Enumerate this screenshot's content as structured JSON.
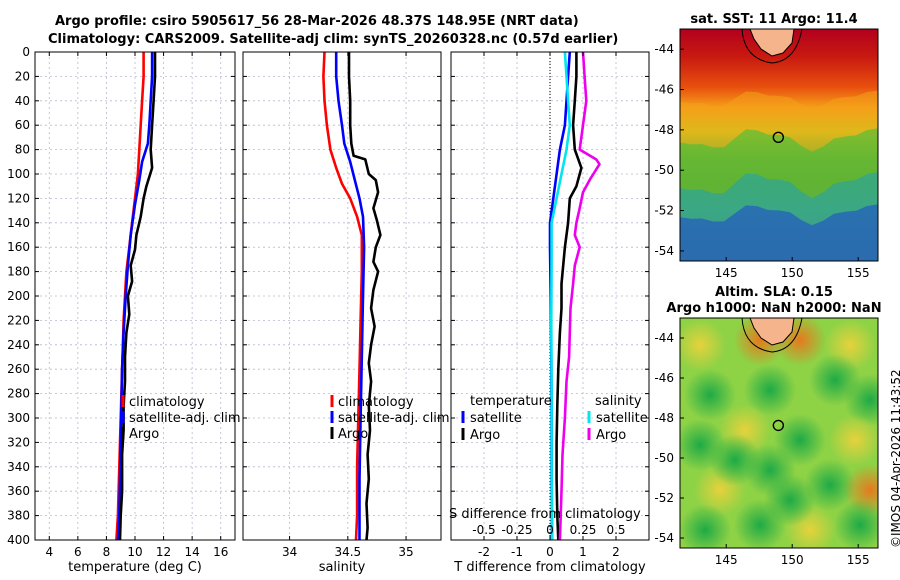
{
  "header": {
    "line1": "Argo profile: csiro 5905617_56 28-Mar-2026 48.37S 148.95E (NRT data)",
    "line2": "Climatology: CARS2009. Satellite-adj clim: synTS_20260328.nc (0.57d earlier)"
  },
  "colors": {
    "clim": "#ff0000",
    "sat": "#0000ff",
    "argo": "#000000",
    "sat_s": "#00e5ee",
    "argo_s": "#ee00ee"
  },
  "y_ticks": [
    "0",
    "20",
    "40",
    "60",
    "80",
    "100",
    "120",
    "140",
    "160",
    "180",
    "200",
    "220",
    "240",
    "260",
    "280",
    "300",
    "320",
    "340",
    "360",
    "380",
    "400"
  ],
  "chart_data": [
    {
      "type": "line",
      "id": "temperature",
      "xlabel": "temperature (deg C)",
      "xlim": [
        3,
        17
      ],
      "ylim": [
        0,
        400
      ],
      "y_reversed": true,
      "x_ticks": [
        4,
        6,
        8,
        10,
        12,
        14,
        16
      ],
      "x_tick_labels": [
        "4",
        "6",
        "8",
        "10",
        "12",
        "14",
        "16"
      ],
      "legend": [
        "climatology",
        "satellite-adj. clim",
        "Argo"
      ],
      "series": [
        {
          "name": "climatology",
          "color": "#ff0000",
          "points": [
            [
              10.6,
              0
            ],
            [
              10.6,
              20
            ],
            [
              10.5,
              40
            ],
            [
              10.4,
              60
            ],
            [
              10.3,
              80
            ],
            [
              10.2,
              100
            ],
            [
              10.0,
              120
            ],
            [
              9.8,
              140
            ],
            [
              9.6,
              160
            ],
            [
              9.4,
              180
            ],
            [
              9.3,
              200
            ],
            [
              9.2,
              220
            ],
            [
              9.15,
              240
            ],
            [
              9.1,
              260
            ],
            [
              9.05,
              280
            ],
            [
              9.0,
              300
            ],
            [
              8.95,
              320
            ],
            [
              8.9,
              340
            ],
            [
              8.85,
              360
            ],
            [
              8.8,
              380
            ],
            [
              8.7,
              400
            ]
          ]
        },
        {
          "name": "satellite-adj. clim",
          "color": "#0000ff",
          "points": [
            [
              11.2,
              0
            ],
            [
              11.2,
              20
            ],
            [
              11.1,
              40
            ],
            [
              11.0,
              60
            ],
            [
              10.9,
              75
            ],
            [
              10.5,
              90
            ],
            [
              10.3,
              105
            ],
            [
              10.0,
              125
            ],
            [
              9.7,
              150
            ],
            [
              9.5,
              175
            ],
            [
              9.35,
              200
            ],
            [
              9.2,
              230
            ],
            [
              9.1,
              260
            ],
            [
              9.05,
              290
            ],
            [
              9.0,
              320
            ],
            [
              8.95,
              350
            ],
            [
              8.9,
              380
            ],
            [
              8.8,
              400
            ]
          ]
        },
        {
          "name": "Argo",
          "color": "#000000",
          "points": [
            [
              11.4,
              0
            ],
            [
              11.4,
              20
            ],
            [
              11.3,
              40
            ],
            [
              11.2,
              60
            ],
            [
              11.1,
              80
            ],
            [
              11.2,
              95
            ],
            [
              10.8,
              110
            ],
            [
              10.6,
              120
            ],
            [
              10.4,
              135
            ],
            [
              10.1,
              150
            ],
            [
              10.0,
              162
            ],
            [
              9.7,
              175
            ],
            [
              9.8,
              188
            ],
            [
              9.5,
              200
            ],
            [
              9.6,
              215
            ],
            [
              9.4,
              230
            ],
            [
              9.3,
              250
            ],
            [
              9.3,
              270
            ],
            [
              9.2,
              290
            ],
            [
              9.2,
              310
            ],
            [
              9.1,
              330
            ],
            [
              9.1,
              360
            ],
            [
              9.0,
              380
            ],
            [
              8.95,
              400
            ]
          ]
        }
      ]
    },
    {
      "type": "line",
      "id": "salinity",
      "xlabel": "salinity",
      "xlim": [
        33.6,
        35.3
      ],
      "ylim": [
        0,
        400
      ],
      "y_reversed": true,
      "x_ticks": [
        34,
        34.5,
        35
      ],
      "x_tick_labels": [
        "34",
        "34.5",
        "35"
      ],
      "legend": [
        "climatology",
        "satellite-adj. clim",
        "Argo"
      ],
      "series": [
        {
          "name": "climatology",
          "color": "#ff0000",
          "points": [
            [
              34.3,
              0
            ],
            [
              34.29,
              20
            ],
            [
              34.3,
              40
            ],
            [
              34.32,
              60
            ],
            [
              34.35,
              80
            ],
            [
              34.4,
              95
            ],
            [
              34.45,
              108
            ],
            [
              34.52,
              120
            ],
            [
              34.58,
              135
            ],
            [
              34.62,
              150
            ],
            [
              34.62,
              180
            ],
            [
              34.61,
              220
            ],
            [
              34.6,
              260
            ],
            [
              34.59,
              300
            ],
            [
              34.58,
              340
            ],
            [
              34.58,
              380
            ],
            [
              34.57,
              400
            ]
          ]
        },
        {
          "name": "satellite-adj. clim",
          "color": "#0000ff",
          "points": [
            [
              34.4,
              0
            ],
            [
              34.4,
              20
            ],
            [
              34.42,
              40
            ],
            [
              34.45,
              60
            ],
            [
              34.47,
              75
            ],
            [
              34.52,
              90
            ],
            [
              34.56,
              105
            ],
            [
              34.6,
              120
            ],
            [
              34.63,
              135
            ],
            [
              34.64,
              160
            ],
            [
              34.63,
              200
            ],
            [
              34.62,
              250
            ],
            [
              34.61,
              300
            ],
            [
              34.6,
              350
            ],
            [
              34.6,
              400
            ]
          ]
        },
        {
          "name": "Argo",
          "color": "#000000",
          "points": [
            [
              34.51,
              0
            ],
            [
              34.51,
              20
            ],
            [
              34.52,
              40
            ],
            [
              34.52,
              60
            ],
            [
              34.53,
              75
            ],
            [
              34.55,
              85
            ],
            [
              34.65,
              88
            ],
            [
              34.68,
              100
            ],
            [
              34.74,
              105
            ],
            [
              34.76,
              115
            ],
            [
              34.72,
              128
            ],
            [
              34.75,
              138
            ],
            [
              34.78,
              150
            ],
            [
              34.74,
              160
            ],
            [
              34.72,
              172
            ],
            [
              34.76,
              180
            ],
            [
              34.72,
              195
            ],
            [
              34.7,
              210
            ],
            [
              34.73,
              225
            ],
            [
              34.7,
              240
            ],
            [
              34.68,
              255
            ],
            [
              34.7,
              270
            ],
            [
              34.68,
              290
            ],
            [
              34.69,
              310
            ],
            [
              34.67,
              330
            ],
            [
              34.68,
              350
            ],
            [
              34.66,
              370
            ],
            [
              34.67,
              390
            ],
            [
              34.66,
              400
            ]
          ]
        }
      ]
    },
    {
      "type": "line",
      "id": "difference",
      "xlabel": "T difference from climatology",
      "xlabel_top": "S difference from climatology",
      "xlim": [
        -3,
        3
      ],
      "ylim": [
        0,
        400
      ],
      "y_reversed": true,
      "zero_line": true,
      "x_ticks": [
        -2,
        -1,
        0,
        1,
        2
      ],
      "x_tick_labels": [
        "-2",
        "-1",
        "0",
        "1",
        "2"
      ],
      "s_ticks": [
        "-0.5",
        "-0.25",
        "0",
        "0.25",
        "0.5"
      ],
      "s_scale": 0.25,
      "legend_left_title": "temperature",
      "legend_right_title": "salinity",
      "legend": [
        "satellite",
        "Argo",
        "satellite",
        "Argo"
      ],
      "series": [
        {
          "name": "temperature satellite",
          "color": "#0000ff",
          "points": [
            [
              0.6,
              0
            ],
            [
              0.55,
              20
            ],
            [
              0.5,
              40
            ],
            [
              0.45,
              60
            ],
            [
              0.3,
              80
            ],
            [
              0.2,
              100
            ],
            [
              0.1,
              120
            ],
            [
              0.0,
              140
            ],
            [
              0.0,
              160
            ],
            [
              0.02,
              200
            ],
            [
              0.04,
              250
            ],
            [
              0.05,
              300
            ],
            [
              0.05,
              350
            ],
            [
              0.06,
              400
            ]
          ]
        },
        {
          "name": "temperature Argo",
          "color": "#000000",
          "points": [
            [
              0.8,
              0
            ],
            [
              0.8,
              20
            ],
            [
              0.75,
              40
            ],
            [
              0.7,
              60
            ],
            [
              0.75,
              80
            ],
            [
              0.95,
              95
            ],
            [
              0.8,
              110
            ],
            [
              0.6,
              120
            ],
            [
              0.55,
              140
            ],
            [
              0.45,
              160
            ],
            [
              0.4,
              175
            ],
            [
              0.35,
              190
            ],
            [
              0.35,
              210
            ],
            [
              0.3,
              230
            ],
            [
              0.25,
              260
            ],
            [
              0.22,
              290
            ],
            [
              0.2,
              320
            ],
            [
              0.2,
              350
            ],
            [
              0.22,
              380
            ],
            [
              0.25,
              400
            ]
          ]
        },
        {
          "name": "salinity satellite",
          "color": "#00e5ee",
          "points": [
            [
              0.45,
              0
            ],
            [
              0.5,
              20
            ],
            [
              0.55,
              40
            ],
            [
              0.6,
              60
            ],
            [
              0.5,
              80
            ],
            [
              0.35,
              100
            ],
            [
              0.2,
              120
            ],
            [
              0.05,
              140
            ],
            [
              0.05,
              170
            ],
            [
              0.04,
              220
            ],
            [
              0.05,
              280
            ],
            [
              0.05,
              340
            ],
            [
              0.06,
              400
            ]
          ]
        },
        {
          "name": "salinity Argo",
          "color": "#ee00ee",
          "points": [
            [
              1.0,
              0
            ],
            [
              1.05,
              20
            ],
            [
              1.1,
              40
            ],
            [
              1.0,
              60
            ],
            [
              0.9,
              80
            ],
            [
              1.4,
              88
            ],
            [
              1.5,
              92
            ],
            [
              1.2,
              105
            ],
            [
              1.0,
              115
            ],
            [
              0.9,
              128
            ],
            [
              0.8,
              140
            ],
            [
              0.75,
              150
            ],
            [
              0.9,
              160
            ],
            [
              0.75,
              175
            ],
            [
              0.7,
              190
            ],
            [
              0.62,
              210
            ],
            [
              0.6,
              230
            ],
            [
              0.58,
              250
            ],
            [
              0.5,
              270
            ],
            [
              0.45,
              300
            ],
            [
              0.38,
              330
            ],
            [
              0.35,
              360
            ],
            [
              0.3,
              400
            ]
          ]
        }
      ]
    },
    {
      "type": "heatmap",
      "id": "sst_map",
      "title": "sat. SST: 11 Argo: 11.4",
      "x_ticks": [
        "145",
        "150",
        "155"
      ],
      "y_ticks": [
        "-44",
        "-46",
        "-48",
        "-50",
        "-52",
        "-54"
      ],
      "xlim": [
        141.5,
        156.5
      ],
      "ylim": [
        -54.5,
        -43
      ],
      "marker": {
        "lon": 148.95,
        "lat": -48.37
      }
    },
    {
      "type": "heatmap",
      "id": "sla_map",
      "title1": "Altim. SLA: 0.15",
      "title2": "Argo h1000: NaN h2000: NaN",
      "x_ticks": [
        "145",
        "150",
        "155"
      ],
      "y_ticks": [
        "-44",
        "-46",
        "-48",
        "-50",
        "-52",
        "-54"
      ],
      "xlim": [
        141.5,
        156.5
      ],
      "ylim": [
        -54.5,
        -43
      ],
      "marker": {
        "lon": 148.95,
        "lat": -48.37
      }
    }
  ],
  "credit": "©IMOS 04-Apr-2026 11:43:52"
}
